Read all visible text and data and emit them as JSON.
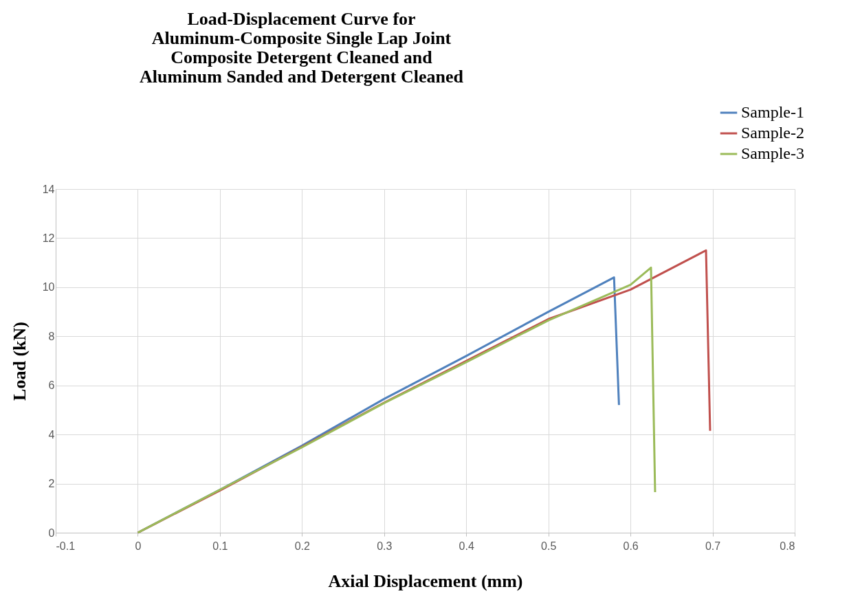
{
  "chart_data": {
    "type": "line",
    "title": [
      "Load-Displacement Curve for",
      "Aluminum-Composite Single Lap Joint",
      "Composite Detergent Cleaned and",
      "Aluminum Sanded and Detergent Cleaned"
    ],
    "xlabel": "Axial Displacement (mm)",
    "ylabel": "Load (kN)",
    "xlim": [
      -0.1,
      0.8
    ],
    "xticks": [
      -0.1,
      0,
      0.1,
      0.2,
      0.3,
      0.4,
      0.5,
      0.6,
      0.7,
      0.8
    ],
    "ylim": [
      0,
      14
    ],
    "yticks": [
      0,
      2,
      4,
      6,
      8,
      10,
      12,
      14
    ],
    "grid": true,
    "legend": "top right",
    "marker": "none",
    "line_style": "solid",
    "series": [
      {
        "name": "Sample-1",
        "color": "#4f81bd",
        "x": [
          0,
          0.1,
          0.2,
          0.3,
          0.4,
          0.5,
          0.58,
          0.586
        ],
        "values": [
          0,
          1.75,
          3.55,
          5.45,
          7.2,
          9.0,
          10.4,
          5.2
        ]
      },
      {
        "name": "Sample-2",
        "color": "#c0504d",
        "x": [
          0,
          0.1,
          0.2,
          0.3,
          0.4,
          0.5,
          0.6,
          0.692,
          0.697
        ],
        "values": [
          0,
          1.72,
          3.5,
          5.3,
          7.0,
          8.7,
          9.9,
          11.5,
          4.15
        ]
      },
      {
        "name": "Sample-3",
        "color": "#9bbb59",
        "x": [
          0,
          0.1,
          0.2,
          0.3,
          0.4,
          0.5,
          0.6,
          0.625,
          0.63
        ],
        "values": [
          0,
          1.75,
          3.48,
          5.28,
          6.95,
          8.65,
          10.1,
          10.8,
          1.65
        ]
      }
    ]
  }
}
